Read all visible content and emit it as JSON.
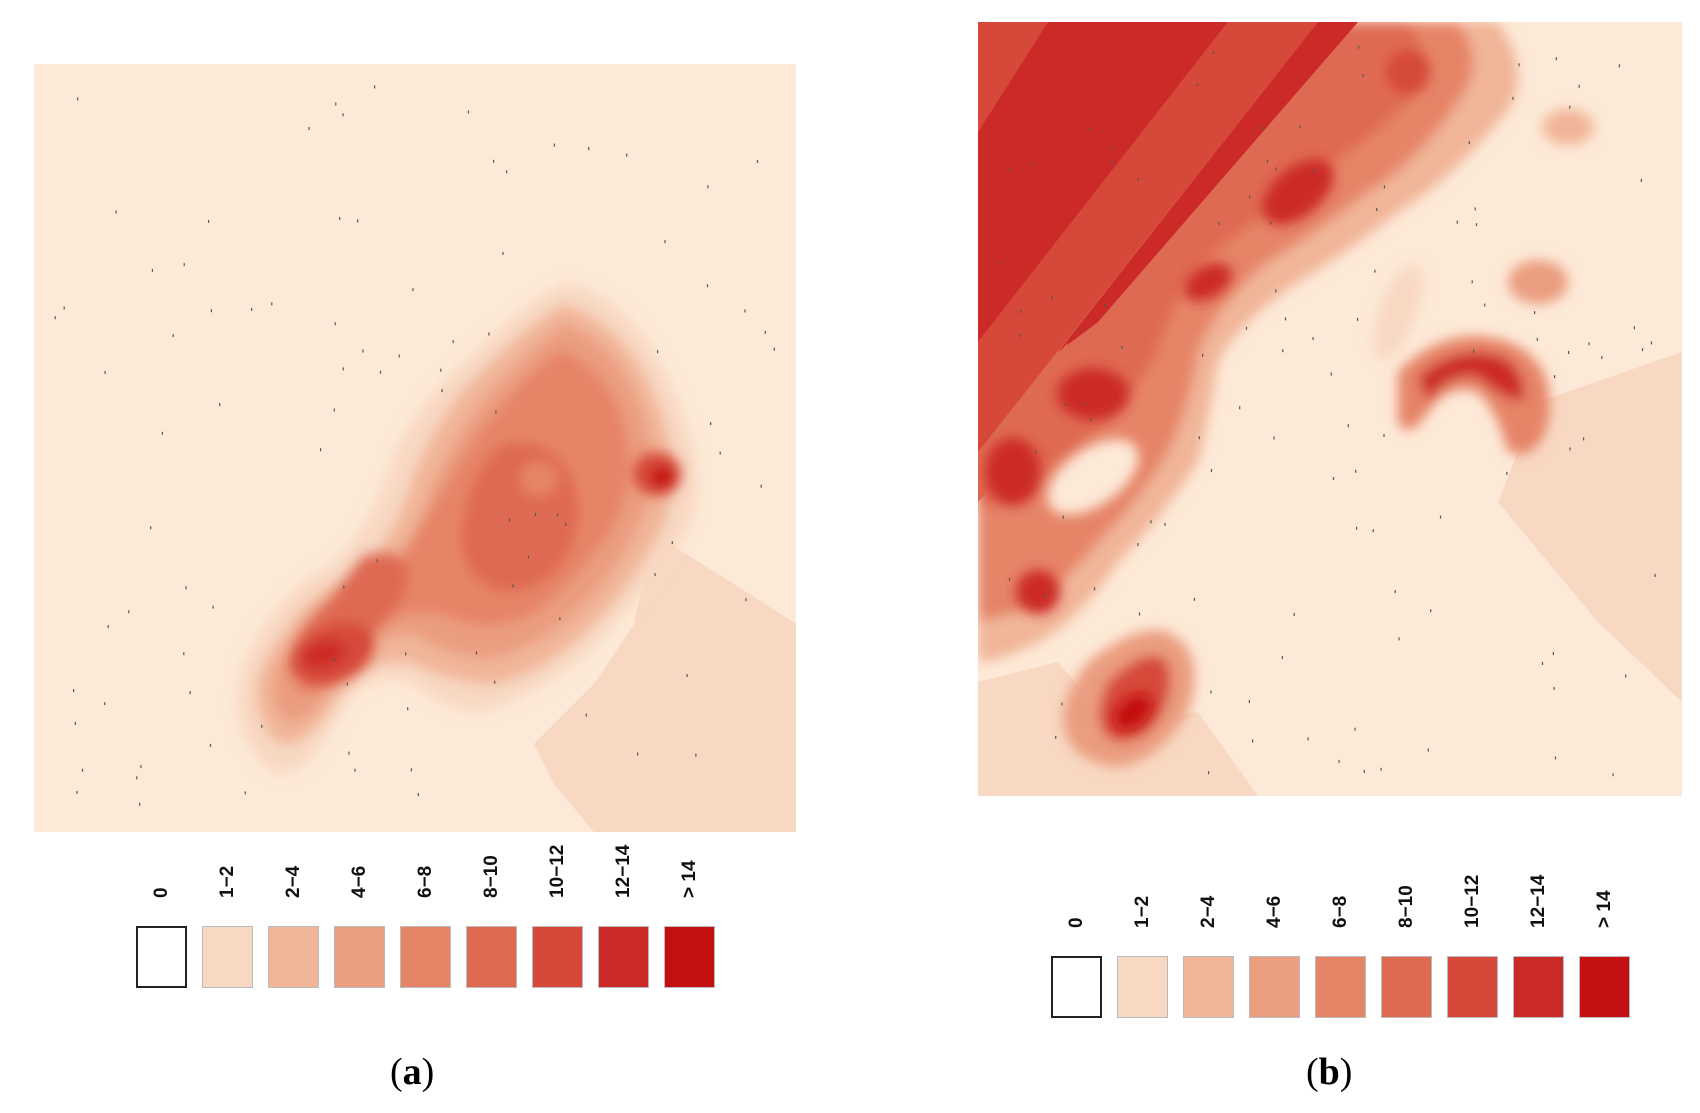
{
  "legend": {
    "classes": [
      "0",
      "1−2",
      "2−4",
      "4−6",
      "6−8",
      "8−10",
      "10−12",
      "12−14",
      "> 14"
    ],
    "colors": [
      "#ffffff",
      "#f8d8c2",
      "#f1b598",
      "#eb9d80",
      "#e68468",
      "#df6a52",
      "#d6483a",
      "#cc2a28",
      "#c41010"
    ]
  },
  "panels": [
    {
      "label_open": "(",
      "label_letter": "a",
      "label_close": ")"
    },
    {
      "label_open": "(",
      "label_letter": "b",
      "label_close": ")"
    }
  ],
  "map_colors": {
    "background": "#fde9d7"
  }
}
